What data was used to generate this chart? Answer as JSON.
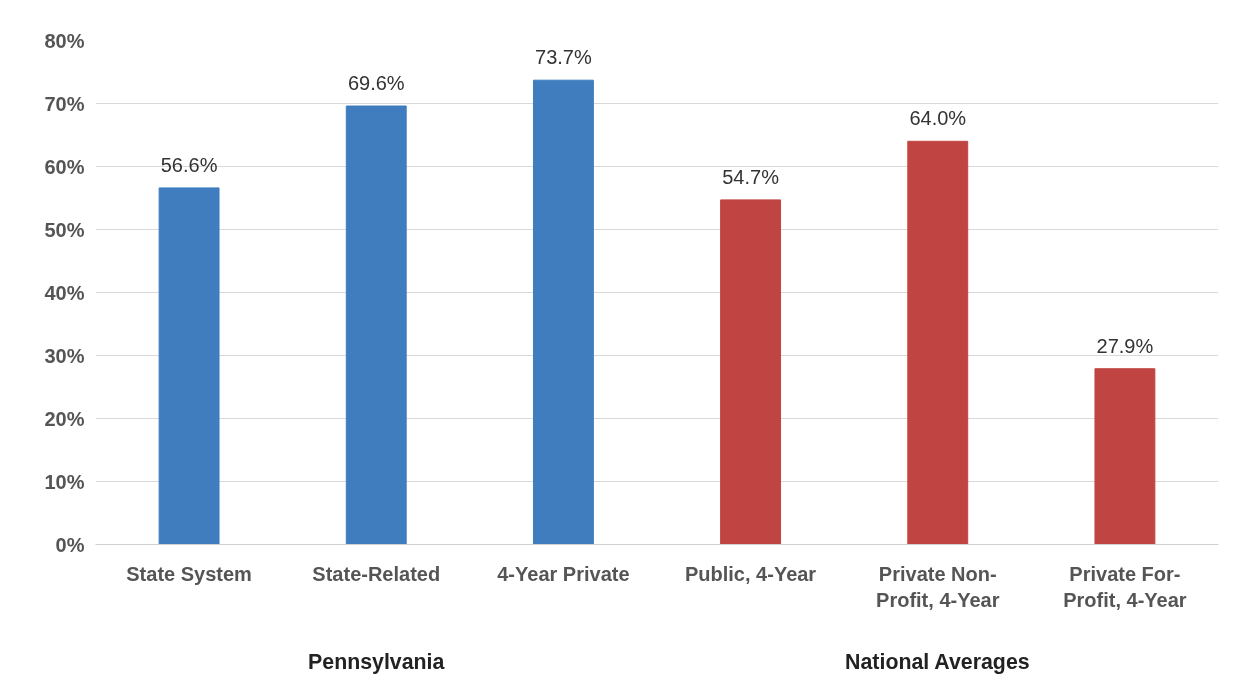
{
  "chart_data": {
    "type": "bar",
    "categories": [
      "State System",
      "State-Related",
      "4-Year Private",
      "Public, 4-Year",
      "Private Non-\nProfit, 4-Year",
      "Private For-\nProfit, 4-Year"
    ],
    "values": [
      56.6,
      69.6,
      73.7,
      54.7,
      64.0,
      27.9
    ],
    "colors": [
      "#3f7dbf",
      "#3f7dbf",
      "#3f7dbf",
      "#c04542",
      "#c04542",
      "#c04542"
    ],
    "value_labels": [
      "56.6%",
      "69.6%",
      "73.7%",
      "54.7%",
      "64.0%",
      "27.9%"
    ],
    "ylim": [
      0,
      80
    ],
    "yticks": [
      {
        "value": 0,
        "label": "0%"
      },
      {
        "value": 10,
        "label": "10%"
      },
      {
        "value": 20,
        "label": "20%"
      },
      {
        "value": 30,
        "label": "30%"
      },
      {
        "value": 40,
        "label": "40%"
      },
      {
        "value": 50,
        "label": "50%"
      },
      {
        "value": 60,
        "label": "60%"
      },
      {
        "value": 70,
        "label": "70%"
      },
      {
        "value": 80,
        "label": "80%"
      }
    ],
    "grid": "y",
    "annotations": [
      "Pennsylvania",
      "National Averages"
    ]
  }
}
